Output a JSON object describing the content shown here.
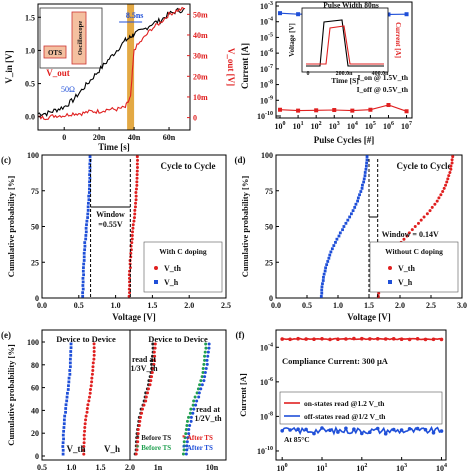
{
  "figure": {
    "source_note": ""
  },
  "chart_data": [
    {
      "panel": "a",
      "type": "line",
      "title": "",
      "xlabel": "Time [s]",
      "ylabel": "V_in [V]",
      "y2label": "V_out [V]",
      "xticks": [
        "0",
        "20n",
        "40n",
        "60n"
      ],
      "yticks": [
        "0.0",
        "0.5",
        "1.0",
        "1.5"
      ],
      "y2ticks": [
        "0",
        "10m",
        "20m",
        "30m",
        "40m",
        "50m"
      ],
      "xlim": [
        -15,
        72
      ],
      "ylim": [
        -0.2,
        1.7
      ],
      "y2lim": [
        -0.006,
        0.055
      ],
      "annotations": [
        "8.5ns",
        "OTS",
        "Oscilloscope",
        "V_out",
        "50Ω"
      ],
      "series": [
        {
          "name": "V_in",
          "color": "#000000",
          "x": [
            -15,
            -10,
            -5,
            0,
            5,
            10,
            15,
            20,
            25,
            30,
            35,
            38,
            40,
            45,
            50,
            55,
            60,
            65,
            70
          ],
          "values": [
            0.05,
            0.05,
            0.1,
            0.15,
            0.25,
            0.4,
            0.55,
            0.7,
            0.85,
            1.0,
            1.15,
            1.2,
            1.25,
            1.3,
            1.4,
            1.45,
            1.55,
            1.6,
            1.62
          ]
        },
        {
          "name": "V_out",
          "color": "#e02020",
          "x": [
            -15,
            -10,
            -5,
            0,
            5,
            10,
            15,
            20,
            25,
            30,
            35,
            38,
            40,
            45,
            50,
            55,
            60,
            65,
            70
          ],
          "values": [
            0.0,
            0.0,
            0.001,
            0.001,
            0.002,
            0.002,
            0.003,
            0.003,
            0.004,
            0.004,
            0.005,
            0.01,
            0.033,
            0.038,
            0.043,
            0.046,
            0.05,
            0.052,
            0.053
          ]
        }
      ]
    },
    {
      "panel": "b",
      "type": "scatter",
      "xlabel": "Pulse Cycles [#]",
      "ylabel": "Current [A]",
      "xscale": "log",
      "yscale": "log",
      "xticks": [
        "10^0",
        "10^1",
        "10^2",
        "10^3",
        "10^4",
        "10^5",
        "10^6",
        "10^7"
      ],
      "yticks": [
        "10^-10",
        "10^-9",
        "10^-8",
        "10^-7",
        "10^-6",
        "10^-5",
        "10^-4",
        "10^-3"
      ],
      "inset": {
        "title": "Pulse Width 80ns",
        "xlabel": "Time [S]",
        "ylabel": "Voltage [V]",
        "y2label": "Current [A]",
        "xticks": [
          "0",
          "200.0n",
          "400.0n"
        ]
      },
      "series": [
        {
          "name": "I_on @ 1.5V_th",
          "color": "#1f4fd8",
          "x": [
            1,
            10,
            100,
            1000,
            10000,
            100000,
            1000000,
            10000000
          ],
          "values": [
            0.00035,
            0.0003,
            0.00032,
            0.0003,
            0.00031,
            0.0003,
            0.00029,
            0.0003
          ]
        },
        {
          "name": "I_off @ 0.5V_th",
          "color": "#e02020",
          "x": [
            1,
            10,
            100,
            1000,
            10000,
            100000,
            1000000,
            10000000
          ],
          "values": [
            2.5e-10,
            2.2e-10,
            2.3e-10,
            2.4e-10,
            2.2e-10,
            2.5e-10,
            5e-10,
            2e-10
          ]
        }
      ]
    },
    {
      "panel": "c",
      "label": "(c)",
      "type": "scatter",
      "title": "Cycle to Cycle",
      "xlabel": "Voltage [V]",
      "ylabel": "Cumulative probability [%]",
      "xlim": [
        0,
        2.5
      ],
      "ylim": [
        0,
        100
      ],
      "xticks": [
        "0.0",
        "0.5",
        "1.0",
        "1.5",
        "2.0",
        "2.5"
      ],
      "yticks": [
        "0",
        "25",
        "50",
        "75",
        "100"
      ],
      "annotations": [
        "Window =0.55V",
        "With C doping"
      ],
      "series": [
        {
          "name": "V_th",
          "color": "#e02020",
          "marker": "circle",
          "v_min": 1.18,
          "v_max": 1.3
        },
        {
          "name": "V_h",
          "color": "#1f4fd8",
          "marker": "square",
          "v_min": 0.55,
          "v_max": 0.66
        }
      ]
    },
    {
      "panel": "d",
      "label": "(d)",
      "type": "scatter",
      "title": "Cycle to Cycle",
      "xlabel": "Voltage [V]",
      "ylabel": "Cumulative probability [%]",
      "xlim": [
        0,
        3.0
      ],
      "ylim": [
        0,
        100
      ],
      "xticks": [
        "0.0",
        "0.5",
        "1.0",
        "1.5",
        "2.0",
        "2.5",
        "3.0"
      ],
      "yticks": [
        "0",
        "25",
        "50",
        "75",
        "100"
      ],
      "annotations": [
        "Window = 0.14V",
        "Without C doping"
      ],
      "series": [
        {
          "name": "V_th",
          "color": "#e02020",
          "marker": "circle",
          "v_min": 1.6,
          "v_max": 2.9
        },
        {
          "name": "V_h",
          "color": "#1f4fd8",
          "marker": "square",
          "v_min": 0.7,
          "v_max": 1.5
        }
      ]
    },
    {
      "panel": "e",
      "label": "(e)",
      "type": "scatter",
      "title_left": "Device to Device",
      "title_right": "Device to Device",
      "xlabel": "",
      "ylabel": "Cumulative probability [%]",
      "ylim": [
        0,
        100
      ],
      "xticks_left": [
        "0.5",
        "1.0",
        "1.5",
        "2.0"
      ],
      "xticks_right": [
        "1n",
        "10n"
      ],
      "yticks": [
        "0",
        "20",
        "40",
        "60",
        "80",
        "100"
      ],
      "annotations": [
        "read at 1/3V_th",
        "read at 1/2V_th"
      ],
      "legend_left": [
        "V_th",
        "V_h"
      ],
      "legend_right": [
        "Before TS",
        "After TS",
        "Before TS",
        "After TS"
      ],
      "series": [
        {
          "name": "V_th",
          "color": "#e02020",
          "v_min": 1.2,
          "v_max": 1.4
        },
        {
          "name": "V_h",
          "color": "#1f4fd8",
          "v_min": 0.85,
          "v_max": 1.0
        },
        {
          "name": "Before TS",
          "color": "#222222"
        },
        {
          "name": "After TS",
          "color": "#e02020"
        },
        {
          "name": "Before TS",
          "color": "#20a050"
        },
        {
          "name": "After TS",
          "color": "#1f4fd8"
        }
      ]
    },
    {
      "panel": "f",
      "label": "(f)",
      "type": "line",
      "xlabel": "",
      "ylabel": "Current [A]",
      "xscale": "log",
      "yscale": "log",
      "xticks": [
        "10^0",
        "10^1",
        "10^2",
        "10^3",
        "10^4"
      ],
      "yticks": [
        "10^-10",
        "10^-8",
        "10^-6",
        "10^-4"
      ],
      "annotations": [
        "Compliance Current: 300 μA",
        "At 85°C"
      ],
      "series": [
        {
          "name": "on-states read @1.2 V_th",
          "color": "#e02020",
          "marker": "circle",
          "value": 0.0003
        },
        {
          "name": "off-states read @1/2 V_th",
          "color": "#1f4fd8",
          "marker": "circle",
          "value": 1.5e-09
        }
      ]
    }
  ]
}
